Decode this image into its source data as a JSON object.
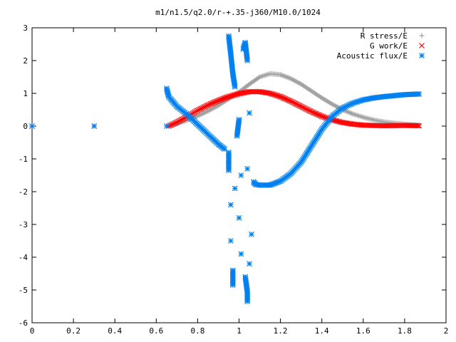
{
  "chart_data": {
    "type": "scatter",
    "title": "m1/n1.5/q2.0/r-+.35-j360/M10.0/1024",
    "xlabel": "",
    "ylabel": "",
    "xlim": [
      0,
      2
    ],
    "ylim": [
      -6,
      3
    ],
    "xticks": [
      "0",
      "0.2",
      "0.4",
      "0.6",
      "0.8",
      "1",
      "1.2",
      "1.4",
      "1.6",
      "1.8",
      "2"
    ],
    "yticks": [
      "3",
      "2",
      "1",
      "0",
      "-1",
      "-2",
      "-3",
      "-4",
      "-5",
      "-6"
    ],
    "grid": false,
    "legend_position": "top-right",
    "series": [
      {
        "name": "R stress/E",
        "marker": "+",
        "color": "#a0a0a0",
        "points": [
          [
            0.0,
            0.0
          ],
          [
            0.3,
            0.0
          ],
          [
            0.66,
            0.0
          ],
          [
            0.7,
            0.07
          ],
          [
            0.75,
            0.18
          ],
          [
            0.8,
            0.31
          ],
          [
            0.85,
            0.46
          ],
          [
            0.9,
            0.63
          ],
          [
            0.95,
            0.83
          ],
          [
            1.0,
            1.04
          ],
          [
            1.05,
            1.28
          ],
          [
            1.1,
            1.5
          ],
          [
            1.15,
            1.6
          ],
          [
            1.2,
            1.57
          ],
          [
            1.25,
            1.45
          ],
          [
            1.3,
            1.28
          ],
          [
            1.35,
            1.07
          ],
          [
            1.4,
            0.86
          ],
          [
            1.45,
            0.67
          ],
          [
            1.5,
            0.5
          ],
          [
            1.55,
            0.37
          ],
          [
            1.6,
            0.27
          ],
          [
            1.65,
            0.19
          ],
          [
            1.7,
            0.13
          ],
          [
            1.75,
            0.09
          ],
          [
            1.8,
            0.06
          ],
          [
            1.87,
            0.03
          ]
        ]
      },
      {
        "name": "G work/E",
        "marker": "x",
        "color": "#ff0000",
        "points": [
          [
            0.0,
            0.0
          ],
          [
            0.3,
            0.0
          ],
          [
            0.66,
            0.0
          ],
          [
            0.7,
            0.12
          ],
          [
            0.75,
            0.29
          ],
          [
            0.8,
            0.48
          ],
          [
            0.85,
            0.64
          ],
          [
            0.9,
            0.78
          ],
          [
            0.95,
            0.9
          ],
          [
            1.0,
            0.99
          ],
          [
            1.05,
            1.05
          ],
          [
            1.1,
            1.05
          ],
          [
            1.15,
            1.0
          ],
          [
            1.2,
            0.9
          ],
          [
            1.25,
            0.76
          ],
          [
            1.3,
            0.6
          ],
          [
            1.35,
            0.44
          ],
          [
            1.4,
            0.3
          ],
          [
            1.45,
            0.19
          ],
          [
            1.5,
            0.11
          ],
          [
            1.55,
            0.06
          ],
          [
            1.6,
            0.03
          ],
          [
            1.7,
            0.01
          ],
          [
            1.8,
            0.02
          ],
          [
            1.87,
            0.01
          ]
        ]
      },
      {
        "name": "Acoustic flux/E",
        "marker": "*",
        "color": "#0080f0",
        "points": [
          [
            0.0,
            0.0
          ],
          [
            0.3,
            0.0
          ],
          [
            0.65,
            0.0
          ],
          [
            0.65,
            1.15
          ],
          [
            0.66,
            0.9
          ],
          [
            0.7,
            0.6
          ],
          [
            0.75,
            0.35
          ],
          [
            0.8,
            0.05
          ],
          [
            0.85,
            -0.25
          ],
          [
            0.9,
            -0.55
          ],
          [
            0.93,
            -0.7
          ],
          [
            0.95,
            2.75
          ],
          [
            0.96,
            2.2
          ],
          [
            0.97,
            1.6
          ],
          [
            0.98,
            1.2
          ],
          [
            0.95,
            -0.8
          ],
          [
            0.95,
            -1.35
          ],
          [
            0.96,
            -2.4
          ],
          [
            0.96,
            -3.5
          ],
          [
            0.97,
            -4.4
          ],
          [
            0.97,
            -4.85
          ],
          [
            0.98,
            -1.9
          ],
          [
            0.99,
            -0.3
          ],
          [
            1.0,
            0.2
          ],
          [
            1.01,
            -1.5
          ],
          [
            1.0,
            -2.8
          ],
          [
            1.01,
            -3.9
          ],
          [
            1.02,
            2.35
          ],
          [
            1.03,
            2.55
          ],
          [
            1.04,
            2.0
          ],
          [
            1.05,
            0.4
          ],
          [
            1.04,
            -1.3
          ],
          [
            1.03,
            -4.6
          ],
          [
            1.04,
            -5.05
          ],
          [
            1.04,
            -5.35
          ],
          [
            1.05,
            -4.2
          ],
          [
            1.06,
            -3.3
          ],
          [
            1.07,
            -1.7
          ],
          [
            1.08,
            -1.78
          ],
          [
            1.1,
            -1.8
          ],
          [
            1.15,
            -1.8
          ],
          [
            1.2,
            -1.68
          ],
          [
            1.25,
            -1.45
          ],
          [
            1.3,
            -1.1
          ],
          [
            1.35,
            -0.6
          ],
          [
            1.4,
            -0.1
          ],
          [
            1.45,
            0.3
          ],
          [
            1.5,
            0.55
          ],
          [
            1.55,
            0.7
          ],
          [
            1.6,
            0.8
          ],
          [
            1.65,
            0.86
          ],
          [
            1.7,
            0.9
          ],
          [
            1.75,
            0.93
          ],
          [
            1.8,
            0.96
          ],
          [
            1.87,
            0.98
          ]
        ]
      }
    ]
  }
}
